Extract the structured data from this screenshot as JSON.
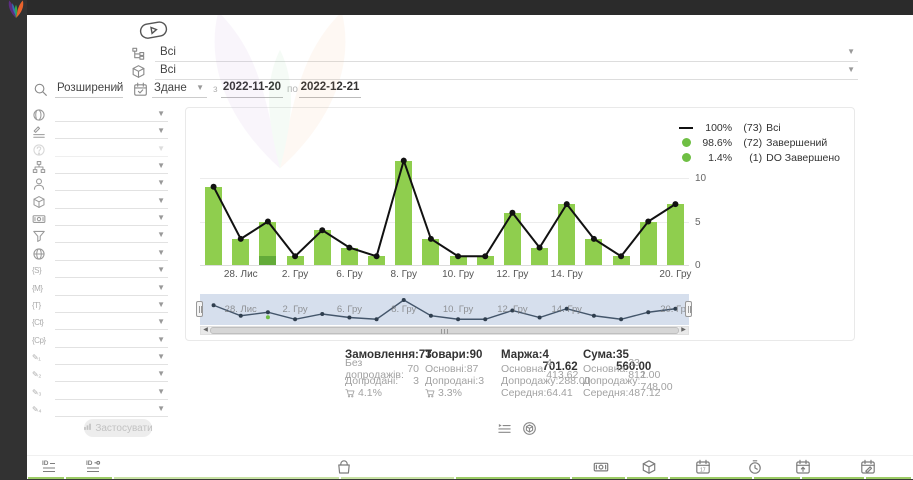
{
  "app": {
    "bar_green": "#8fce4e",
    "bar_dark_green": "#63ab39",
    "legend_green": "#6fbf44",
    "accent_yellow": "#c9a227",
    "footer_green": "#9ccc65",
    "footer_green_pale": "#c8e2a4"
  },
  "sidebar": {
    "items": [
      {
        "icon": "dashboard-icon"
      },
      {
        "icon": "orders-list-icon"
      },
      {
        "icon": "users-icon"
      },
      {
        "icon": "warehouse-icon"
      },
      {
        "icon": "cart-icon"
      },
      {
        "icon": "megaphone-icon"
      },
      {
        "icon": "statistics-icon",
        "active": true
      },
      {
        "icon": "sliders-icon"
      },
      {
        "icon": "info-icon"
      },
      {
        "icon": "integrations-icon"
      },
      {
        "icon": "video-icon"
      }
    ]
  },
  "filters": {
    "hint_icon": "video-hint-icon",
    "row1": {
      "icon": "category-tree-icon",
      "value": "Всі"
    },
    "row2": {
      "icon": "package-icon",
      "value": "Всі"
    },
    "search": {
      "icon": "search-icon",
      "mode": "Розширений",
      "date_icon": "calendar-check-icon",
      "date_type": "Здане",
      "from_label": "з",
      "from": "2022-11-20",
      "to_label": "по",
      "to": "2022-12-21"
    },
    "side_rows": [
      {
        "icon": "globe-icon"
      },
      {
        "icon": "lines-edit-icon"
      },
      {
        "icon": "question-icon",
        "disabled": true
      },
      {
        "icon": "sitemap-icon"
      },
      {
        "icon": "person-icon"
      },
      {
        "icon": "package-icon"
      },
      {
        "icon": "money-icon"
      },
      {
        "icon": "funnel-icon"
      },
      {
        "icon": "network-icon"
      },
      {
        "icon": "utm-source-icon",
        "text": "{S}"
      },
      {
        "icon": "utm-medium-icon",
        "text": "{M}"
      },
      {
        "icon": "utm-term-icon",
        "text": "{T}"
      },
      {
        "icon": "utm-content-icon",
        "text": "{Ct}"
      },
      {
        "icon": "utm-campaign-icon",
        "text": "{Cp}"
      },
      {
        "icon": "custom-field-1-icon",
        "text": "✎₁"
      },
      {
        "icon": "custom-field-2-icon",
        "text": "✎₂"
      },
      {
        "icon": "custom-field-3-icon",
        "text": "✎₃"
      },
      {
        "icon": "custom-field-4-icon",
        "text": "✎₄"
      }
    ],
    "apply": {
      "icon": "chart-mini-icon",
      "label": "Застосувати"
    }
  },
  "chart_data": {
    "type": "bar",
    "x_labels": [
      "",
      "28. Лис",
      "",
      "2. Гру",
      "",
      "6. Гру",
      "",
      "8. Гру",
      "",
      "10. Гру",
      "",
      "12. Гру",
      "",
      "14. Гру",
      "",
      "",
      "",
      "20. Гру"
    ],
    "series": [
      {
        "name": "Всі",
        "type": "line",
        "color": "#111111",
        "values": [
          9,
          3,
          5,
          1,
          4,
          2,
          1,
          12,
          3,
          1,
          1,
          6,
          2,
          7,
          3,
          1,
          5,
          7
        ]
      },
      {
        "name": "Завершений",
        "type": "bar",
        "color": "#8fce4e",
        "values": [
          9,
          3,
          4,
          1,
          4,
          2,
          1,
          12,
          3,
          1,
          1,
          6,
          2,
          7,
          3,
          1,
          5,
          7
        ]
      },
      {
        "name": "DO Завершено",
        "type": "bar",
        "color": "#63ab39",
        "values": [
          0,
          0,
          1,
          0,
          0,
          0,
          0,
          0,
          0,
          0,
          0,
          0,
          0,
          0,
          0,
          0,
          0,
          0
        ]
      }
    ],
    "legend": [
      {
        "marker": "line",
        "pct": "100%",
        "count": "(73)",
        "label": "Всі"
      },
      {
        "marker": "dot",
        "pct": "98.6%",
        "count": "(72)",
        "label": "Завершений"
      },
      {
        "marker": "dot",
        "pct": "1.4%",
        "count": "(1)",
        "label": "DO Завершено"
      }
    ],
    "yaxis": {
      "ticks": [
        "0",
        "5",
        "10"
      ],
      "max": 12.5,
      "position": "right"
    },
    "navigator": true,
    "grid": true,
    "legend_position": "top-right"
  },
  "stats": {
    "columns": [
      {
        "title": "Замовлення:",
        "value": "73",
        "rows": [
          {
            "label": "Без допродажів:",
            "value": "70"
          },
          {
            "label": "Допродані:",
            "value": "3"
          },
          {
            "icon": "upsell-cart-icon",
            "label": "4.1%",
            "value": ""
          }
        ]
      },
      {
        "title": "Товари:",
        "value": "90",
        "rows": [
          {
            "label": "Основні:",
            "value": "87"
          },
          {
            "label": "Допродані:",
            "value": "3"
          },
          {
            "icon": "upsell-cart-icon",
            "label": "3.3%",
            "value": ""
          }
        ]
      },
      {
        "title": "Маржа:",
        "value": "4 701.62",
        "rows": [
          {
            "label": "Основна:",
            "value": "4 413.62"
          },
          {
            "label": "Допродажу:",
            "value": "288.00"
          },
          {
            "label": "Середня:",
            "value": "64.41"
          }
        ]
      },
      {
        "title": "Сума:",
        "value": "35 560.00",
        "rows": [
          {
            "label": "Основна:",
            "value": "33 812.00"
          },
          {
            "label": "Допродажу:",
            "value": "1 748.00"
          },
          {
            "label": "Середня:",
            "value": "487.12"
          }
        ]
      }
    ]
  },
  "view_toggle": {
    "icons": [
      "list-view-icon",
      "package-circle-icon"
    ]
  },
  "footer": {
    "icons": [
      "id-list-icon",
      "id-link-icon",
      "bag-icon",
      "money-icon",
      "package-icon",
      "calendar-icon",
      "timer-icon",
      "calendar-in-icon",
      "calendar-edit-icon"
    ]
  }
}
